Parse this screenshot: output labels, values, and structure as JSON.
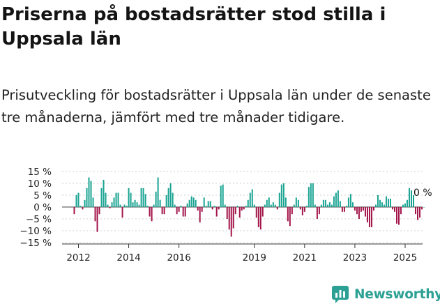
{
  "title": "Priserna på bostadsrätter stod stilla i Uppsala län",
  "subtitle": "Prisutveckling för bostadsrätter i Uppsala län under de senaste tre månaderna, jämfört med tre månader tidigare.",
  "brand": {
    "name": "Newsworthy",
    "icon": "newsworthy-logo-icon"
  },
  "colors": {
    "positive": "#1aa493",
    "negative": "#a3154a",
    "text": "#222222",
    "axis": "#333333"
  },
  "chart_data": {
    "type": "bar",
    "title": "",
    "xlabel": "",
    "ylabel": "",
    "ylim": [
      -15,
      15
    ],
    "y_ticks": [
      "15 %",
      "10 %",
      "5 %",
      "0 %",
      "−5 %",
      "−10 %",
      "−15 %"
    ],
    "y_tick_values": [
      15,
      10,
      5,
      0,
      -5,
      -10,
      -15
    ],
    "x_ticks": [
      "2012",
      "2014",
      "2016",
      "2019",
      "2021",
      "2023",
      "2025"
    ],
    "x_tick_values": [
      2012.0,
      2014.0,
      2016.0,
      2019.0,
      2021.0,
      2023.0,
      2025.0
    ],
    "x_start": "2011-11",
    "interval": "monthly",
    "last_value_label": "0 %",
    "values": [
      -3.0,
      5.0,
      6.0,
      0.5,
      -1.0,
      3.0,
      8.0,
      12.5,
      11.0,
      4.0,
      -6.0,
      -10.5,
      -3.0,
      8.0,
      11.5,
      6.0,
      1.0,
      -0.5,
      2.0,
      4.0,
      6.0,
      6.0,
      1.0,
      -4.5,
      1.0,
      0.5,
      8.0,
      6.0,
      2.0,
      3.0,
      2.0,
      1.0,
      8.0,
      8.0,
      5.5,
      0.5,
      -4.0,
      -6.0,
      1.0,
      6.5,
      12.5,
      3.0,
      -3.0,
      -3.0,
      5.0,
      8.0,
      10.0,
      6.0,
      1.0,
      -3.0,
      -2.0,
      0.5,
      -4.0,
      -4.0,
      1.5,
      3.0,
      4.5,
      4.0,
      3.0,
      -1.5,
      -6.5,
      -2.0,
      4.0,
      0.5,
      2.5,
      2.5,
      -1.0,
      0.5,
      -4.0,
      -1.0,
      9.0,
      9.5,
      1.0,
      -5.0,
      -9.5,
      -12.5,
      -9.0,
      -3.0,
      0.5,
      -4.5,
      -1.5,
      -1.0,
      0.5,
      3.0,
      6.0,
      7.5,
      1.0,
      -4.5,
      -8.5,
      -9.5,
      -4.0,
      1.0,
      3.0,
      4.0,
      1.0,
      2.0,
      1.0,
      -1.0,
      6.0,
      9.5,
      10.0,
      4.0,
      -6.0,
      -8.0,
      -3.0,
      1.0,
      4.0,
      3.0,
      -1.0,
      -3.5,
      -2.0,
      0.5,
      8.5,
      10.0,
      10.0,
      1.0,
      -5.0,
      -3.0,
      1.0,
      3.0,
      3.0,
      1.0,
      2.0,
      1.0,
      4.5,
      6.0,
      7.0,
      2.5,
      -2.0,
      -2.0,
      0.5,
      4.0,
      5.5,
      2.0,
      -1.5,
      -3.0,
      -5.0,
      -2.0,
      -1.5,
      -4.0,
      -6.5,
      -8.5,
      -8.5,
      -1.5,
      1.0,
      5.0,
      3.0,
      2.0,
      1.0,
      4.5,
      3.5,
      3.5,
      -1.0,
      -2.0,
      -7.0,
      -7.5,
      -3.0,
      1.0,
      1.5,
      3.0,
      8.0,
      7.0,
      5.0,
      -3.0,
      -5.5,
      -4.5,
      -1.0,
      0.0
    ]
  }
}
